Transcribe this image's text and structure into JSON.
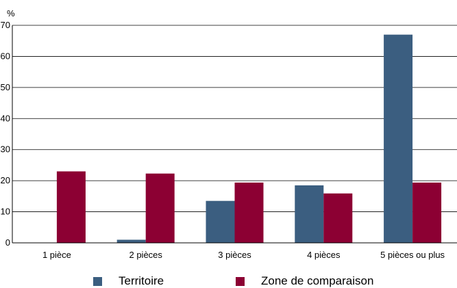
{
  "chart_data": {
    "type": "bar",
    "ylabel": "%",
    "ylim": [
      0,
      70
    ],
    "yticks": [
      "0",
      "10",
      "20",
      "30",
      "40",
      "50",
      "60",
      "70"
    ],
    "categories": [
      "1 pièce",
      "2 pièces",
      "3 pièces",
      "4 pièces",
      "5 pièces ou plus"
    ],
    "grid": true,
    "legend_position": "bottom",
    "series": [
      {
        "name": "Territoire",
        "color": "#3b5e80",
        "values": [
          0,
          1,
          13.5,
          18.5,
          67
        ]
      },
      {
        "name": "Zone de comparaison",
        "color": "#8c0033",
        "values": [
          23,
          22.3,
          19.4,
          15.9,
          19.4
        ]
      }
    ]
  }
}
